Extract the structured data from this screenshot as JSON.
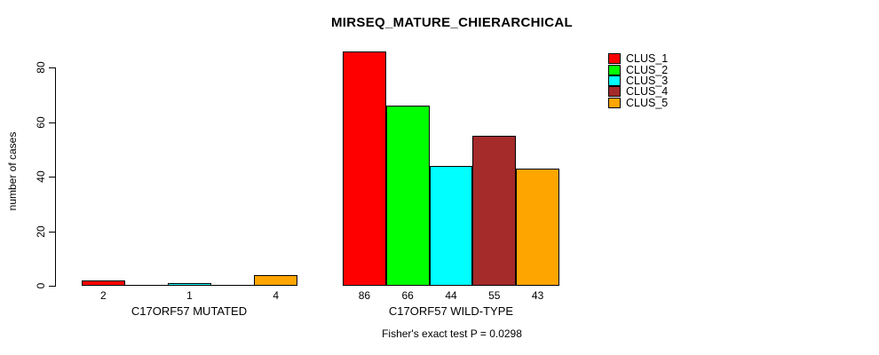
{
  "chart_data": {
    "type": "bar",
    "title": "MIRSEQ_MATURE_CHIERARCHICAL",
    "xlabel": "",
    "ylabel": "number of cases",
    "ylim": [
      0,
      86
    ],
    "yticks": [
      0,
      20,
      40,
      60,
      80
    ],
    "grid": false,
    "legend_position": "top-right",
    "legend": [
      {
        "label": "CLUS_1",
        "color": "#FF0000"
      },
      {
        "label": "CLUS_2",
        "color": "#00FF00"
      },
      {
        "label": "CLUS_3",
        "color": "#00FFFF"
      },
      {
        "label": "CLUS_4",
        "color": "#A52A2A"
      },
      {
        "label": "CLUS_5",
        "color": "#FFA500"
      }
    ],
    "series_colors": [
      "#FF0000",
      "#00FF00",
      "#00FFFF",
      "#A52A2A",
      "#FFA500"
    ],
    "groups": [
      {
        "label": "C17ORF57 MUTATED",
        "values": [
          2,
          0,
          1,
          0,
          4
        ],
        "bar_labels": [
          "2",
          "",
          "1",
          "",
          "4"
        ]
      },
      {
        "label": "C17ORF57 WILD-TYPE",
        "values": [
          86,
          66,
          44,
          55,
          43
        ],
        "bar_labels": [
          "86",
          "66",
          "44",
          "55",
          "43"
        ]
      }
    ],
    "annotation": "Fisher's exact test P = 0.0298"
  }
}
